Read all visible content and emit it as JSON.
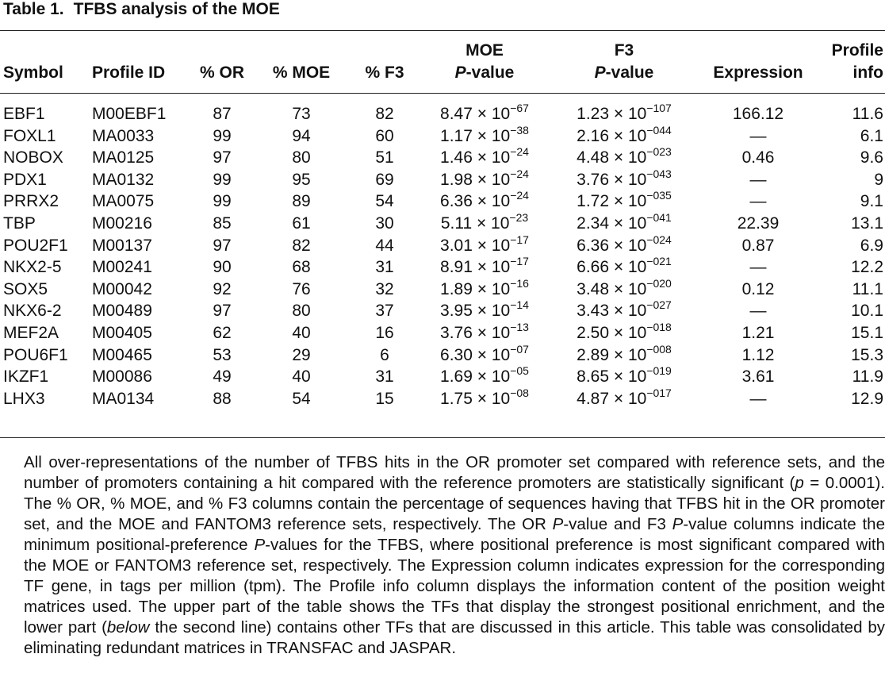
{
  "caption": {
    "label": "Table 1.",
    "title": "TFBS analysis of the MOE"
  },
  "table": {
    "columns": [
      {
        "top": null,
        "bottom": "Symbol"
      },
      {
        "top": null,
        "bottom": "Profile ID"
      },
      {
        "top": null,
        "bottom": "% OR"
      },
      {
        "top": null,
        "bottom": "% MOE"
      },
      {
        "top": null,
        "bottom": "% F3"
      },
      {
        "top": "MOE",
        "italic": "P",
        "bottom": "-value"
      },
      {
        "top": "F3",
        "italic": "P",
        "bottom": "-value"
      },
      {
        "top": null,
        "bottom": "Expression"
      },
      {
        "top": "Profile",
        "bottom": "info"
      }
    ],
    "rows": [
      [
        "EBF1",
        "M00EBF1",
        "87",
        "73",
        "82",
        {
          "base": "8.47 × 10",
          "exp": "−67"
        },
        {
          "base": "1.23 × 10",
          "exp": "−107"
        },
        "166.12",
        "11.6"
      ],
      [
        "FOXL1",
        "MA0033",
        "99",
        "94",
        "60",
        {
          "base": "1.17 × 10",
          "exp": "−38"
        },
        {
          "base": "2.16 × 10",
          "exp": "−044"
        },
        "—",
        "6.1"
      ],
      [
        "NOBOX",
        "MA0125",
        "97",
        "80",
        "51",
        {
          "base": "1.46 × 10",
          "exp": "−24"
        },
        {
          "base": "4.48 × 10",
          "exp": "−023"
        },
        "0.46",
        "9.6"
      ],
      [
        "PDX1",
        "MA0132",
        "99",
        "95",
        "69",
        {
          "base": "1.98 × 10",
          "exp": "−24"
        },
        {
          "base": "3.76 × 10",
          "exp": "−043"
        },
        "—",
        "9"
      ],
      [
        "PRRX2",
        "MA0075",
        "99",
        "89",
        "54",
        {
          "base": "6.36 × 10",
          "exp": "−24"
        },
        {
          "base": "1.72 × 10",
          "exp": "−035"
        },
        "—",
        "9.1"
      ],
      [
        "TBP",
        "M00216",
        "85",
        "61",
        "30",
        {
          "base": "5.11 × 10",
          "exp": "−23"
        },
        {
          "base": "2.34 × 10",
          "exp": "−041"
        },
        "22.39",
        "13.1"
      ],
      [
        "POU2F1",
        "M00137",
        "97",
        "82",
        "44",
        {
          "base": "3.01 × 10",
          "exp": "−17"
        },
        {
          "base": "6.36 × 10",
          "exp": "−024"
        },
        "0.87",
        "6.9"
      ],
      [
        "NKX2-5",
        "M00241",
        "90",
        "68",
        "31",
        {
          "base": "8.91 × 10",
          "exp": "−17"
        },
        {
          "base": "6.66 × 10",
          "exp": "−021"
        },
        "—",
        "12.2"
      ],
      [
        "SOX5",
        "M00042",
        "92",
        "76",
        "32",
        {
          "base": "1.89 × 10",
          "exp": "−16"
        },
        {
          "base": "3.48 × 10",
          "exp": "−020"
        },
        "0.12",
        "11.1"
      ],
      [
        "NKX6-2",
        "M00489",
        "97",
        "80",
        "37",
        {
          "base": "3.95 × 10",
          "exp": "−14"
        },
        {
          "base": "3.43 × 10",
          "exp": "−027"
        },
        "—",
        "10.1"
      ],
      [
        "MEF2A",
        "M00405",
        "62",
        "40",
        "16",
        {
          "base": "3.76 × 10",
          "exp": "−13"
        },
        {
          "base": "2.50 × 10",
          "exp": "−018"
        },
        "1.21",
        "15.1"
      ],
      [
        "POU6F1",
        "M00465",
        "53",
        "29",
        "6",
        {
          "base": "6.30 × 10",
          "exp": "−07"
        },
        {
          "base": "2.89 × 10",
          "exp": "−008"
        },
        "1.12",
        "15.3"
      ],
      [
        "IKZF1",
        "M00086",
        "49",
        "40",
        "31",
        {
          "base": "1.69 × 10",
          "exp": "−05"
        },
        {
          "base": "8.65 × 10",
          "exp": "−019"
        },
        "3.61",
        "11.9"
      ],
      [
        "LHX3",
        "MA0134",
        "88",
        "54",
        "15",
        {
          "base": "1.75 × 10",
          "exp": "−08"
        },
        {
          "base": "4.87 × 10",
          "exp": "−017"
        },
        "—",
        "12.9"
      ]
    ]
  },
  "footnote": [
    {
      "text": "All over-representations of the number of TFBS hits in the OR promoter set compared with reference sets, and the number of promoters containing a hit compared with the reference promoters are statistically significant ("
    },
    {
      "text": "p",
      "italic": true
    },
    {
      "text": " = 0.0001). The % OR, % MOE, and % F3 columns contain the percentage of sequences having that TFBS hit in the OR promoter set, and the MOE and FANTOM3 reference sets, respectively. The OR "
    },
    {
      "text": "P",
      "italic": true
    },
    {
      "text": "-value and F3 "
    },
    {
      "text": "P",
      "italic": true
    },
    {
      "text": "-value columns indicate the minimum positional-preference "
    },
    {
      "text": "P",
      "italic": true
    },
    {
      "text": "-values for the TFBS, where positional preference is most significant compared with the MOE or FANTOM3 reference set, respectively. The Expression column indicates expression for the corresponding TF gene, in tags per million (tpm). The Profile info column displays the information content of the position weight matrices used. The upper part of the table shows the TFs that display the strongest positional enrichment, and the lower part ("
    },
    {
      "text": "below",
      "italic": true
    },
    {
      "text": " the second line) contains other TFs that are discussed in this article. This table was consolidated by eliminating redundant matrices in TRANSFAC and JASPAR."
    }
  ]
}
